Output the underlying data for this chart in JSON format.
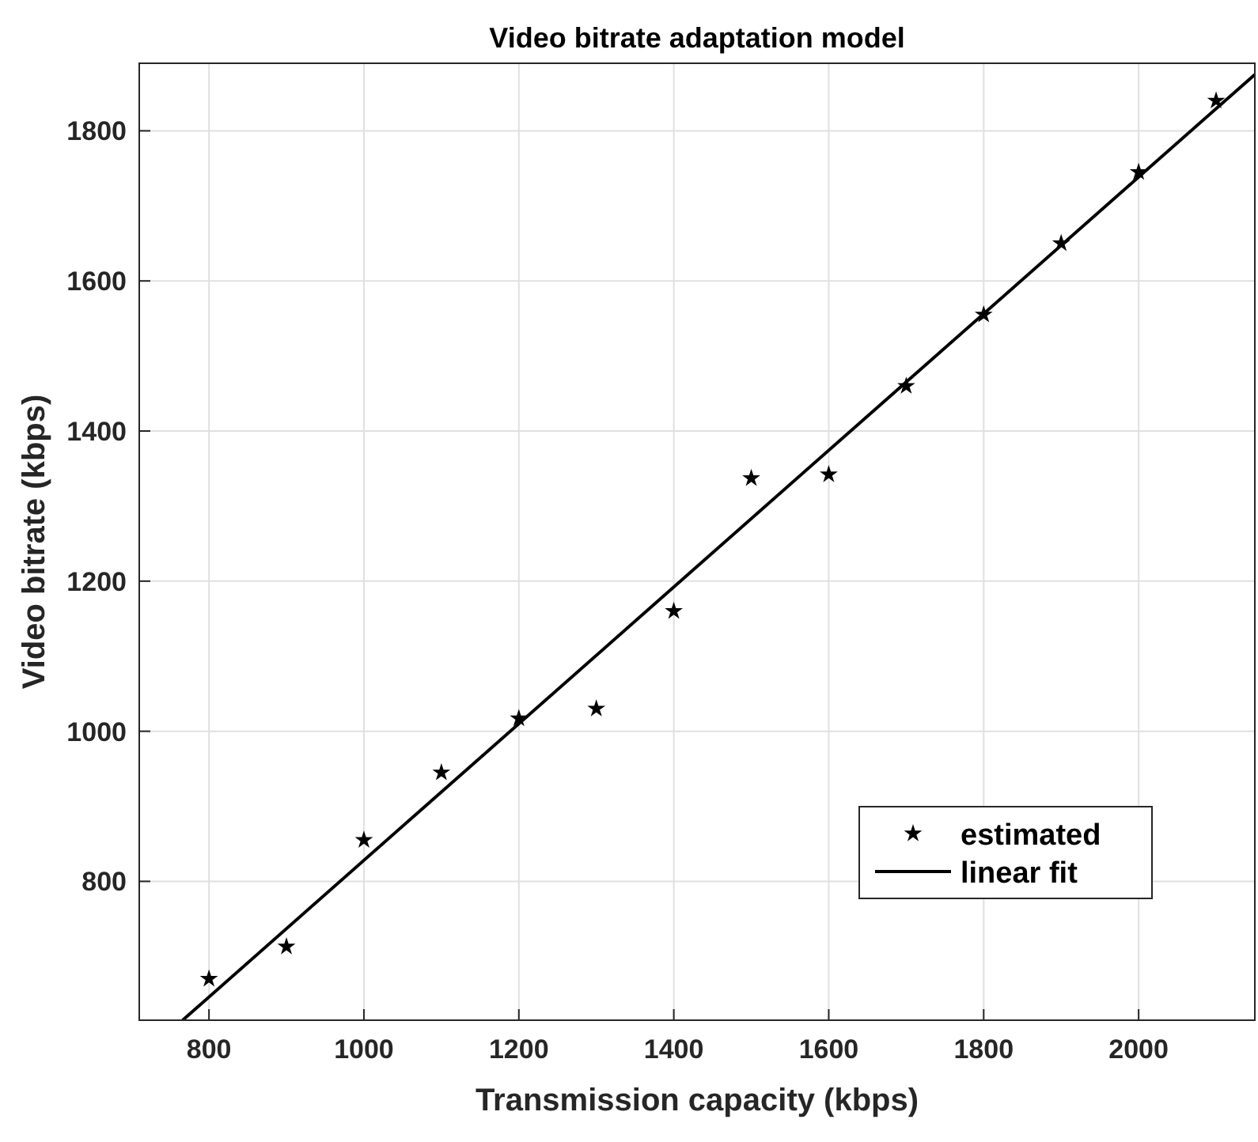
{
  "chart_data": {
    "type": "scatter",
    "title": "Video bitrate adaptation model",
    "xlabel": "Transmission capacity (kbps)",
    "ylabel": "Video bitrate (kbps)",
    "xlim": [
      710,
      2150
    ],
    "xticks": [
      800,
      1000,
      1200,
      1400,
      1600,
      1800,
      2000
    ],
    "ylim": [
      615,
      1890
    ],
    "yticks": [
      800,
      1000,
      1200,
      1400,
      1600,
      1800
    ],
    "grid": true,
    "legend": "bottom right",
    "series": [
      {
        "name": "estimated",
        "marker": "star",
        "color": "#000000",
        "x": [
          800,
          900,
          1000,
          1100,
          1200,
          1300,
          1400,
          1500,
          1600,
          1700,
          1800,
          1900,
          2000,
          2100
        ],
        "values": [
          670,
          713,
          855,
          945,
          1017,
          1030,
          1160,
          1337,
          1342,
          1460,
          1555,
          1650,
          1745,
          1840
        ]
      },
      {
        "name": "linear fit",
        "type": "line",
        "marker": "none",
        "line_style": "solid",
        "color": "#000000",
        "x": [
          766,
          2150
        ],
        "values": [
          615,
          1875
        ]
      }
    ]
  }
}
